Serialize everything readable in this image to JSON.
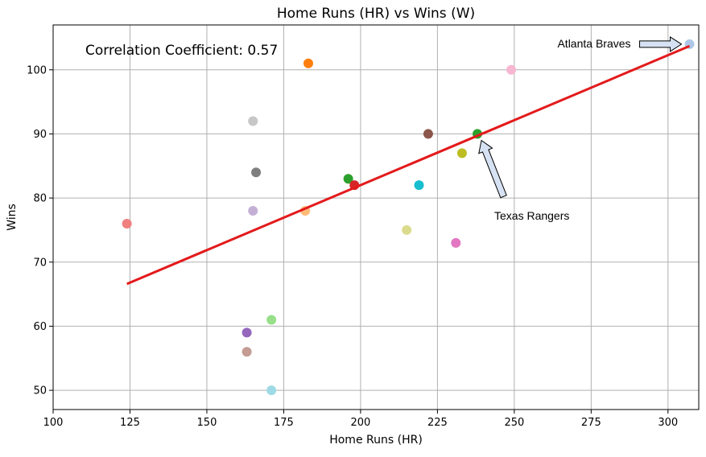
{
  "chart_data": {
    "type": "scatter",
    "title": "Home Runs (HR) vs Wins (W)",
    "xlabel": "Home Runs (HR)",
    "ylabel": "Wins",
    "xlim": [
      100,
      310
    ],
    "ylim": [
      47,
      107
    ],
    "x_ticks": [
      100,
      125,
      150,
      175,
      200,
      225,
      250,
      275,
      300
    ],
    "y_ticks": [
      50,
      60,
      70,
      80,
      90,
      100
    ],
    "grid": true,
    "correlation_text": "Correlation Coefficient: 0.57",
    "points": [
      {
        "x": 124,
        "y": 76,
        "color": "#f08080"
      },
      {
        "x": 183,
        "y": 101,
        "color": "#ff7f0e"
      },
      {
        "x": 165,
        "y": 92,
        "color": "#c7c7c7"
      },
      {
        "x": 166,
        "y": 84,
        "color": "#7f7f7f"
      },
      {
        "x": 165,
        "y": 78,
        "color": "#c5b0d5"
      },
      {
        "x": 182,
        "y": 78,
        "color": "#ffbb78"
      },
      {
        "x": 196,
        "y": 83,
        "color": "#2ca02c"
      },
      {
        "x": 198,
        "y": 82,
        "color": "#d62728"
      },
      {
        "x": 222,
        "y": 90,
        "color": "#8c564b"
      },
      {
        "x": 238,
        "y": 90,
        "color": "#2ca02c"
      },
      {
        "x": 233,
        "y": 87,
        "color": "#bcbd22"
      },
      {
        "x": 219,
        "y": 82,
        "color": "#17becf"
      },
      {
        "x": 215,
        "y": 75,
        "color": "#dbdb8d"
      },
      {
        "x": 231,
        "y": 73,
        "color": "#e377c2"
      },
      {
        "x": 249,
        "y": 100,
        "color": "#f7b6d2"
      },
      {
        "x": 307,
        "y": 104,
        "color": "#aec7e8"
      },
      {
        "x": 171,
        "y": 61,
        "color": "#98df8a"
      },
      {
        "x": 163,
        "y": 59,
        "color": "#9467bd"
      },
      {
        "x": 163,
        "y": 56,
        "color": "#c49c94"
      },
      {
        "x": 171,
        "y": 50,
        "color": "#9edae5"
      }
    ],
    "regression_line": {
      "x": [
        124,
        307
      ],
      "y": [
        66.6,
        103.7
      ],
      "color": "#e31a1c"
    },
    "annotations": [
      {
        "text": "Atlanta Braves",
        "point": {
          "x": 307,
          "y": 104
        }
      },
      {
        "text": "Texas Rangers",
        "point": {
          "x": 238,
          "y": 90
        }
      }
    ]
  }
}
